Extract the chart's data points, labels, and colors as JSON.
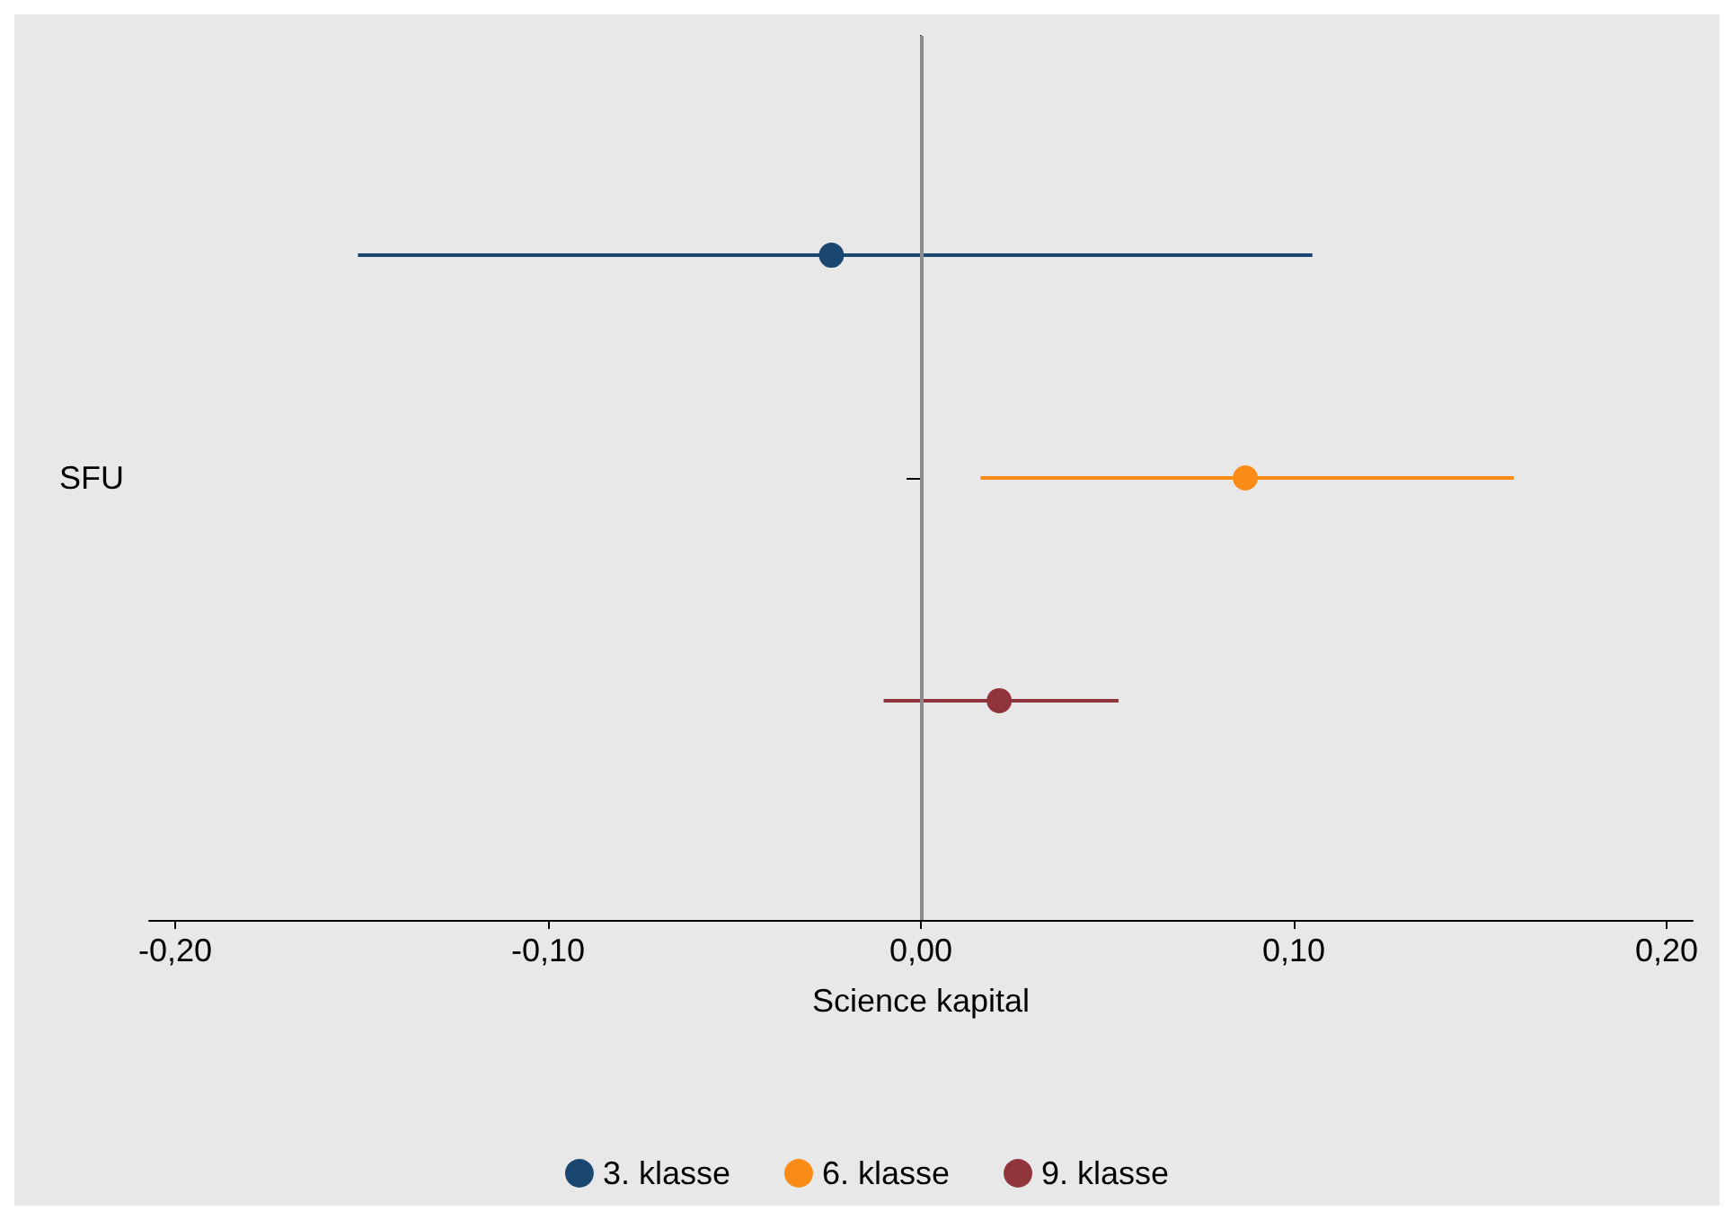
{
  "chart_data": {
    "type": "scatter",
    "orientation": "horizontal",
    "categories": [
      "SFU"
    ],
    "xlabel": "Science kapital",
    "series": [
      {
        "name": "3. klasse",
        "color": "#1a476f",
        "values": [
          -0.024
        ],
        "errors": [
          [
            -0.151,
            0.105
          ]
        ]
      },
      {
        "name": "6. klasse",
        "color": "#f98b16",
        "values": [
          0.087
        ],
        "errors": [
          [
            0.016,
            0.159
          ]
        ]
      },
      {
        "name": "9. klasse",
        "color": "#90353b",
        "values": [
          0.021
        ],
        "errors": [
          [
            -0.01,
            0.053
          ]
        ]
      }
    ],
    "xlim": [
      -0.207,
      0.207
    ],
    "xticks": [
      {
        "value": -0.2,
        "label": "-0,20"
      },
      {
        "value": -0.1,
        "label": "-0,10"
      },
      {
        "value": 0,
        "label": "0,00"
      },
      {
        "value": 0.1,
        "label": "0,10"
      },
      {
        "value": 0.2,
        "label": "0,20"
      }
    ],
    "ref_lines": [
      {
        "axis": "x",
        "value": 0,
        "color": "#8c8c8c"
      }
    ],
    "marker": "circle",
    "grid": false,
    "legend": "bottom"
  }
}
